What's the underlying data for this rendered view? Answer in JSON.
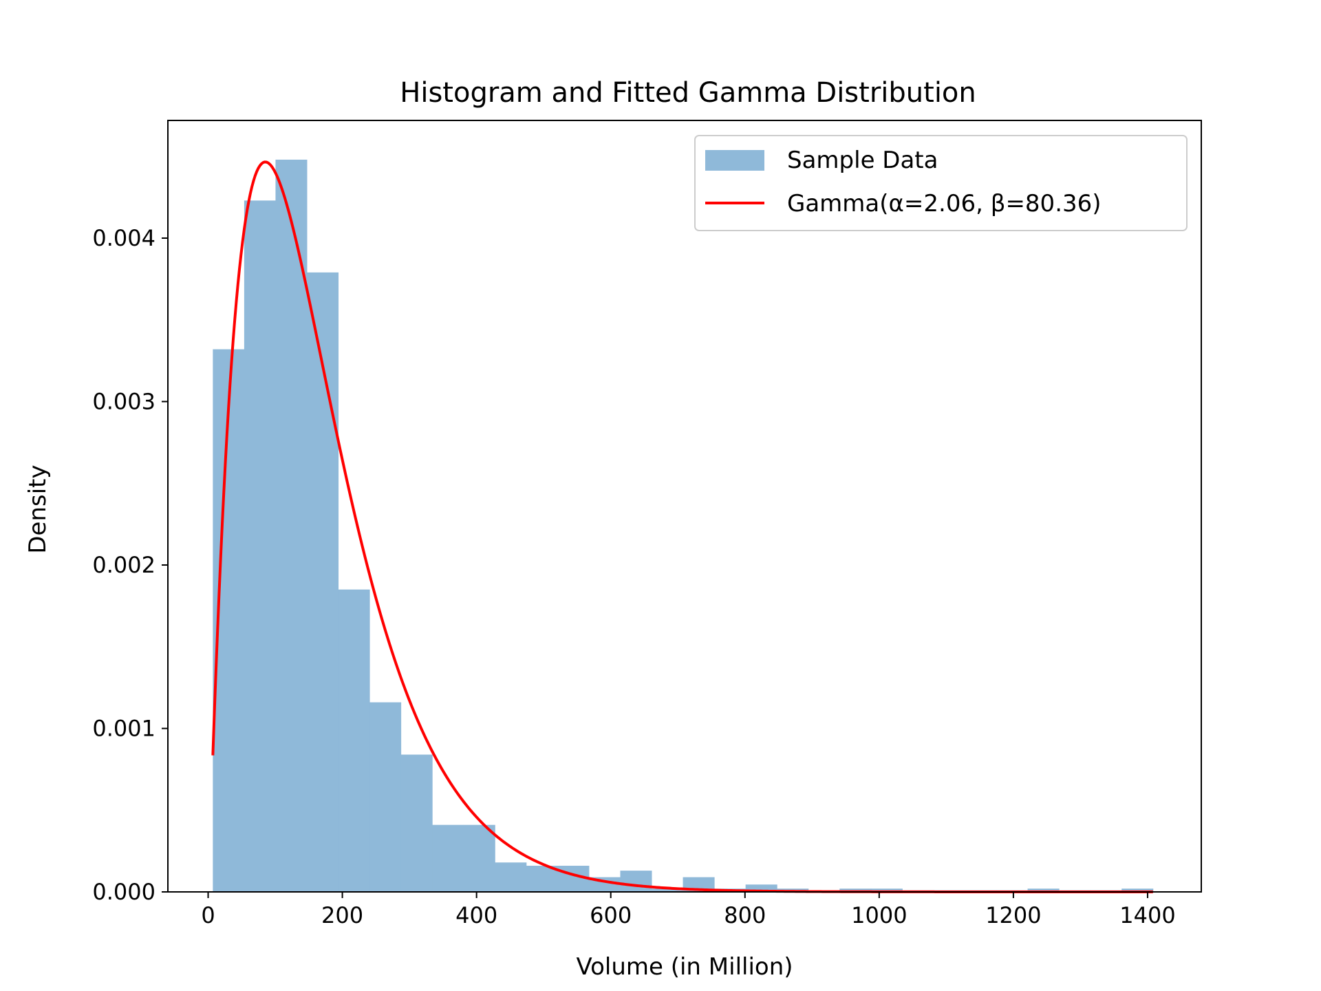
{
  "chart_data": {
    "type": "bar",
    "title": "Histogram and Fitted Gamma Distribution",
    "xlabel": "Volume (in Million)",
    "ylabel": "Density",
    "xlim": [
      -60,
      1480
    ],
    "ylim": [
      0,
      0.00472
    ],
    "xticks": [
      0,
      200,
      400,
      600,
      800,
      1000,
      1200,
      1400
    ],
    "xtick_labels": [
      "0",
      "200",
      "400",
      "600",
      "800",
      "1000",
      "1200",
      "1400"
    ],
    "yticks": [
      0,
      0.001,
      0.002,
      0.003,
      0.004
    ],
    "ytick_labels": [
      "0.000",
      "0.001",
      "0.002",
      "0.003",
      "0.004"
    ],
    "grid": false,
    "legend": {
      "placement": "upper-right",
      "entries": [
        "Sample Data",
        "Gamma(α=2.06, β=80.36)"
      ]
    },
    "histogram": {
      "name": "Sample Data",
      "color": "#8fb9d9",
      "bin_start": 7,
      "bin_width": 46.7,
      "values": [
        0.00332,
        0.00423,
        0.00448,
        0.00379,
        0.00185,
        0.00116,
        0.00084,
        0.00041,
        0.00041,
        0.00018,
        0.00016,
        0.00016,
        9e-05,
        0.00013,
        2e-05,
        9e-05,
        2e-05,
        4.5e-05,
        2e-05,
        1e-05,
        2e-05,
        2e-05,
        1e-05,
        1e-05,
        1e-05,
        1e-05,
        2e-05,
        1e-05,
        1e-05,
        2e-05
      ]
    },
    "curve": {
      "name": "Gamma(α=2.06, β=80.36)",
      "color": "#ff0000",
      "distribution": "gamma",
      "alpha": 2.06,
      "beta": 80.36,
      "x_range": [
        7,
        1408
      ]
    }
  }
}
